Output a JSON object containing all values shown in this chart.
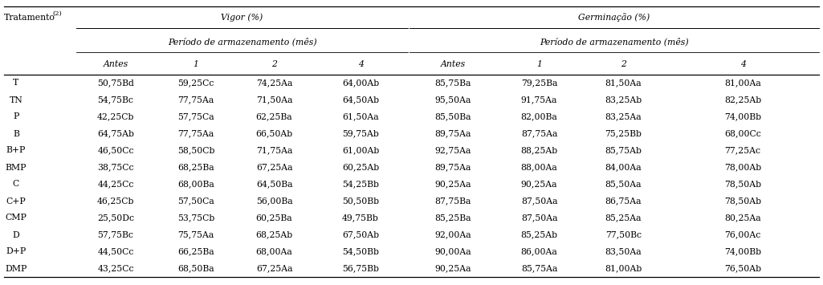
{
  "col_header": "Tratamento",
  "col_header_sup": "(2)",
  "vigor_header": "Vigor (%)",
  "germ_header": "Germinação (%)",
  "periodo_header": "Período de armazenamento (mês)",
  "subheaders": [
    "Antes",
    "1",
    "2",
    "4"
  ],
  "treatments": [
    "T",
    "TN",
    "P",
    "B",
    "B+P",
    "BMP",
    "C",
    "C+P",
    "CMP",
    "D",
    "D+P",
    "DMP"
  ],
  "vigor_data": [
    [
      "50,75Bd",
      "59,25Cc",
      "74,25Aa",
      "64,00Ab"
    ],
    [
      "54,75Bc",
      "77,75Aa",
      "71,50Aa",
      "64,50Ab"
    ],
    [
      "42,25Cb",
      "57,75Ca",
      "62,25Ba",
      "61,50Aa"
    ],
    [
      "64,75Ab",
      "77,75Aa",
      "66,50Ab",
      "59,75Ab"
    ],
    [
      "46,50Cc",
      "58,50Cb",
      "71,75Aa",
      "61,00Ab"
    ],
    [
      "38,75Cc",
      "68,25Ba",
      "67,25Aa",
      "60,25Ab"
    ],
    [
      "44,25Cc",
      "68,00Ba",
      "64,50Ba",
      "54,25Bb"
    ],
    [
      "46,25Cb",
      "57,50Ca",
      "56,00Ba",
      "50,50Bb"
    ],
    [
      "25,50Dc",
      "53,75Cb",
      "60,25Ba",
      "49,75Bb"
    ],
    [
      "57,75Bc",
      "75,75Aa",
      "68,25Ab",
      "67,50Ab"
    ],
    [
      "44,50Cc",
      "66,25Ba",
      "68,00Aa",
      "54,50Bb"
    ],
    [
      "43,25Cc",
      "68,50Ba",
      "67,25Aa",
      "56,75Bb"
    ]
  ],
  "germ_data": [
    [
      "85,75Ba",
      "79,25Ba",
      "81,50Aa",
      "81,00Aa"
    ],
    [
      "95,50Aa",
      "91,75Aa",
      "83,25Ab",
      "82,25Ab"
    ],
    [
      "85,50Ba",
      "82,00Ba",
      "83,25Aa",
      "74,00Bb"
    ],
    [
      "89,75Aa",
      "87,75Aa",
      "75,25Bb",
      "68,00Cc"
    ],
    [
      "92,75Aa",
      "88,25Ab",
      "85,75Ab",
      "77,25Ac"
    ],
    [
      "89,75Aa",
      "88,00Aa",
      "84,00Aa",
      "78,00Ab"
    ],
    [
      "90,25Aa",
      "90,25Aa",
      "85,50Aa",
      "78,50Ab"
    ],
    [
      "87,75Ba",
      "87,50Aa",
      "86,75Aa",
      "78,50Ab"
    ],
    [
      "85,25Ba",
      "87,50Aa",
      "85,25Aa",
      "80,25Aa"
    ],
    [
      "92,00Aa",
      "85,25Ab",
      "77,50Bc",
      "76,00Ac"
    ],
    [
      "90,00Aa",
      "86,00Aa",
      "83,50Aa",
      "74,00Bb"
    ],
    [
      "90,25Aa",
      "85,75Aa",
      "81,00Ab",
      "76,50Ab"
    ]
  ],
  "bg_color": "#ffffff",
  "text_color": "#000000",
  "line_color": "#000000",
  "font_size": 7.8,
  "italic_font_size": 7.8
}
